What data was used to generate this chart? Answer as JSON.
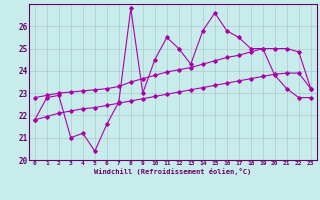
{
  "xlabel": "Windchill (Refroidissement éolien,°C)",
  "bg_color": "#c8ecec",
  "line_color": "#aa00aa",
  "grid_color": "#aacccc",
  "axis_color": "#660066",
  "xlim": [
    -0.5,
    23.5
  ],
  "ylim": [
    20,
    27
  ],
  "xticks": [
    0,
    1,
    2,
    3,
    4,
    5,
    6,
    7,
    8,
    9,
    10,
    11,
    12,
    13,
    14,
    15,
    16,
    17,
    18,
    19,
    20,
    21,
    22,
    23
  ],
  "yticks": [
    20,
    21,
    22,
    23,
    24,
    25,
    26
  ],
  "line1_x": [
    0,
    1,
    2,
    3,
    4,
    5,
    6,
    7,
    8,
    9,
    10,
    11,
    12,
    13,
    14,
    15,
    16,
    17,
    18,
    19,
    20,
    21,
    22,
    23
  ],
  "line1_y": [
    21.8,
    22.8,
    22.9,
    21.0,
    21.2,
    20.4,
    21.6,
    22.6,
    26.8,
    23.0,
    24.5,
    25.5,
    25.0,
    24.3,
    25.8,
    26.6,
    25.8,
    25.5,
    25.0,
    25.0,
    23.8,
    23.2,
    22.8,
    22.8
  ],
  "line2_x": [
    0,
    1,
    2,
    3,
    4,
    5,
    6,
    7,
    8,
    9,
    10,
    11,
    12,
    13,
    14,
    15,
    16,
    17,
    18,
    19,
    20,
    21,
    22,
    23
  ],
  "line2_y": [
    22.8,
    22.9,
    23.0,
    23.05,
    23.1,
    23.15,
    23.2,
    23.3,
    23.5,
    23.65,
    23.8,
    23.95,
    24.05,
    24.15,
    24.3,
    24.45,
    24.6,
    24.7,
    24.85,
    25.0,
    25.0,
    25.0,
    24.85,
    23.2
  ],
  "line3_x": [
    0,
    1,
    2,
    3,
    4,
    5,
    6,
    7,
    8,
    9,
    10,
    11,
    12,
    13,
    14,
    15,
    16,
    17,
    18,
    19,
    20,
    21,
    22,
    23
  ],
  "line3_y": [
    21.8,
    21.95,
    22.1,
    22.2,
    22.3,
    22.35,
    22.45,
    22.55,
    22.65,
    22.75,
    22.85,
    22.95,
    23.05,
    23.15,
    23.25,
    23.35,
    23.45,
    23.55,
    23.65,
    23.75,
    23.85,
    23.9,
    23.9,
    23.2
  ]
}
